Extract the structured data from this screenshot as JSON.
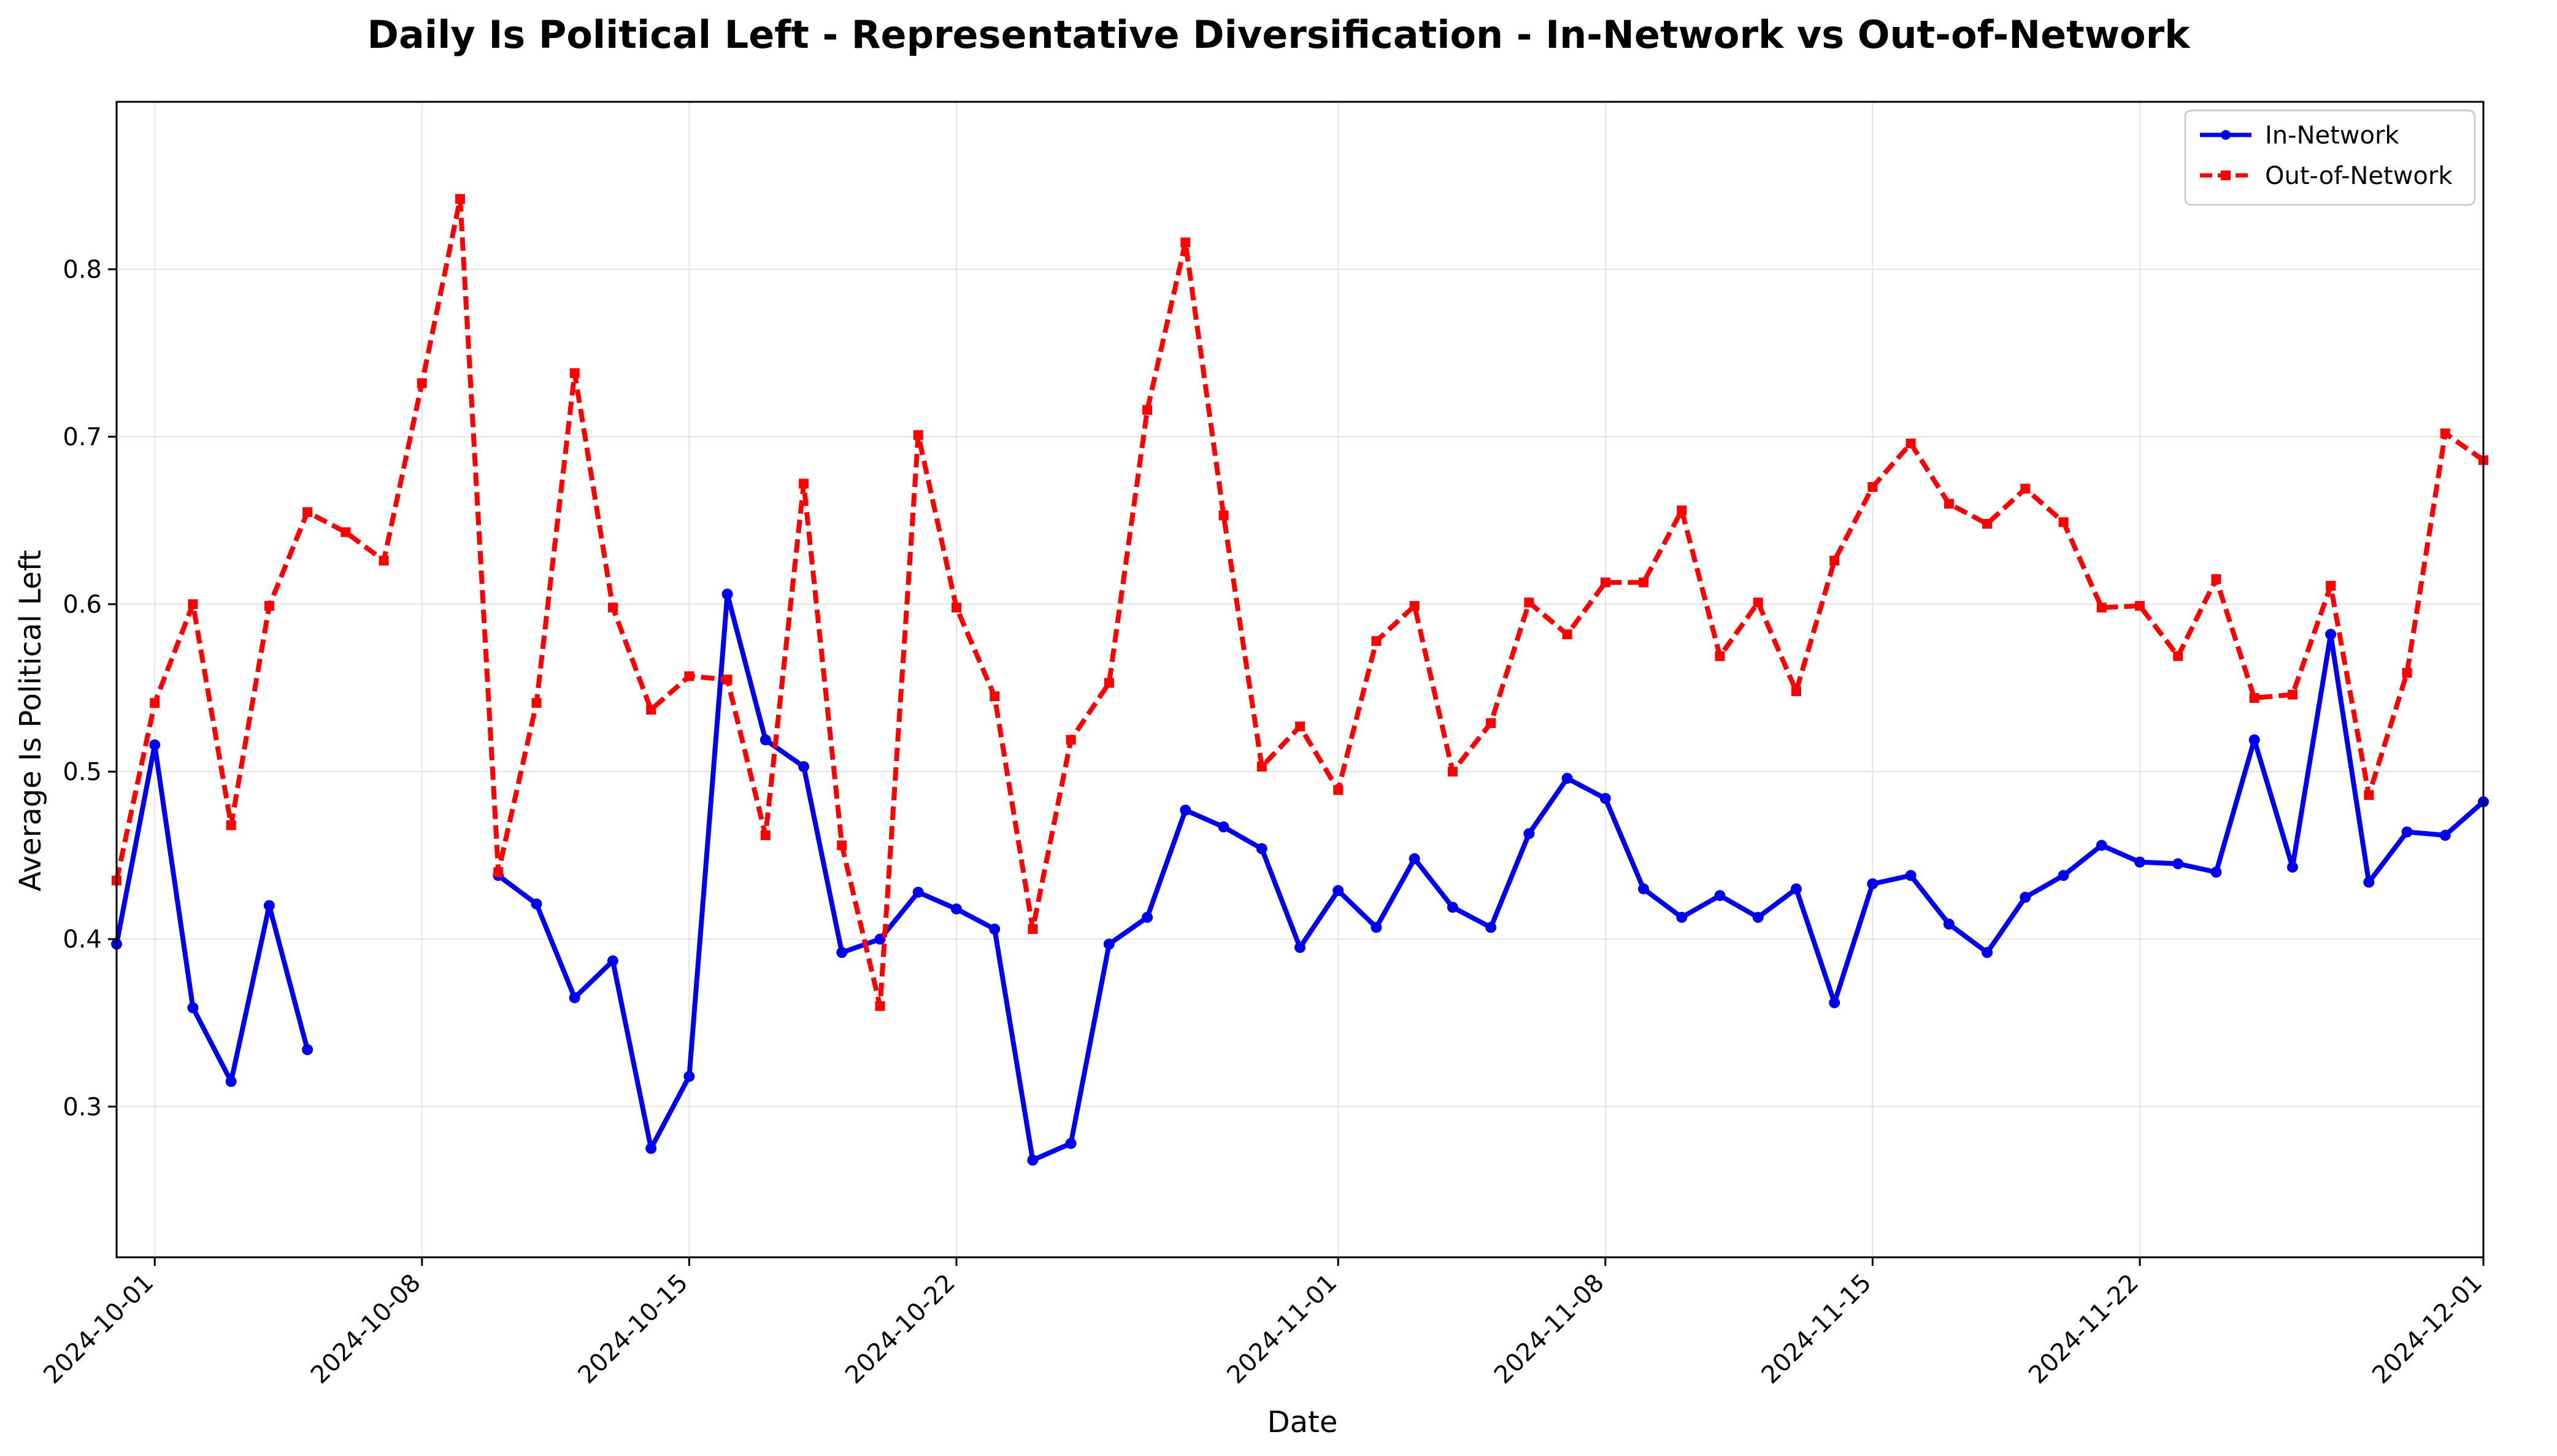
{
  "chart_data": {
    "type": "line",
    "title": "Daily Is Political Left - Representative Diversification - In-Network vs Out-of-Network",
    "xlabel": "Date",
    "ylabel": "Average Is Political Left",
    "x_start": "2024-09-30",
    "xlim": [
      "2024-09-30",
      "2024-12-01"
    ],
    "ylim": [
      0.21,
      0.9
    ],
    "xticks": [
      "2024-10-01",
      "2024-10-08",
      "2024-10-15",
      "2024-10-22",
      "2024-11-01",
      "2024-11-08",
      "2024-11-15",
      "2024-11-22",
      "2024-12-01"
    ],
    "yticks": [
      "0.3",
      "0.4",
      "0.5",
      "0.6",
      "0.7",
      "0.8"
    ],
    "grid": true,
    "legend_position": "top-right",
    "series": [
      {
        "name": "In-Network",
        "color": "#0000ee",
        "line_style": "solid",
        "marker": "circle",
        "values": [
          0.397,
          0.516,
          0.359,
          0.315,
          0.42,
          0.334,
          null,
          null,
          null,
          null,
          0.438,
          0.421,
          0.365,
          0.387,
          0.275,
          0.318,
          0.606,
          0.519,
          0.503,
          0.392,
          0.4,
          0.428,
          0.418,
          0.406,
          0.268,
          0.278,
          0.397,
          0.413,
          0.477,
          0.467,
          0.454,
          0.395,
          0.429,
          0.407,
          0.448,
          0.419,
          0.407,
          0.463,
          0.496,
          0.484,
          0.43,
          0.413,
          0.426,
          0.413,
          0.43,
          0.362,
          0.433,
          0.438,
          0.409,
          0.392,
          0.425,
          0.438,
          0.456,
          0.446,
          0.445,
          0.44,
          0.519,
          0.443,
          0.582,
          0.434,
          0.464,
          0.462,
          0.482
        ]
      },
      {
        "name": "Out-of-Network",
        "color": "#ff0000",
        "line_style": "dashed",
        "marker": "square",
        "values": [
          0.435,
          0.541,
          0.6,
          0.468,
          0.599,
          0.655,
          0.643,
          0.626,
          0.732,
          0.842,
          0.44,
          0.541,
          0.738,
          0.598,
          0.537,
          0.557,
          0.555,
          0.462,
          0.672,
          0.456,
          0.36,
          0.701,
          0.598,
          0.545,
          0.406,
          0.519,
          0.553,
          0.716,
          0.816,
          0.653,
          0.503,
          0.527,
          0.489,
          0.578,
          0.599,
          0.5,
          0.529,
          0.601,
          0.582,
          0.613,
          0.613,
          0.656,
          0.569,
          0.601,
          0.548,
          0.626,
          0.67,
          0.696,
          0.66,
          0.648,
          0.669,
          0.649,
          0.598,
          0.599,
          0.569,
          0.615,
          0.544,
          0.546,
          0.611,
          0.486,
          0.559,
          0.702,
          0.686
        ]
      }
    ]
  }
}
